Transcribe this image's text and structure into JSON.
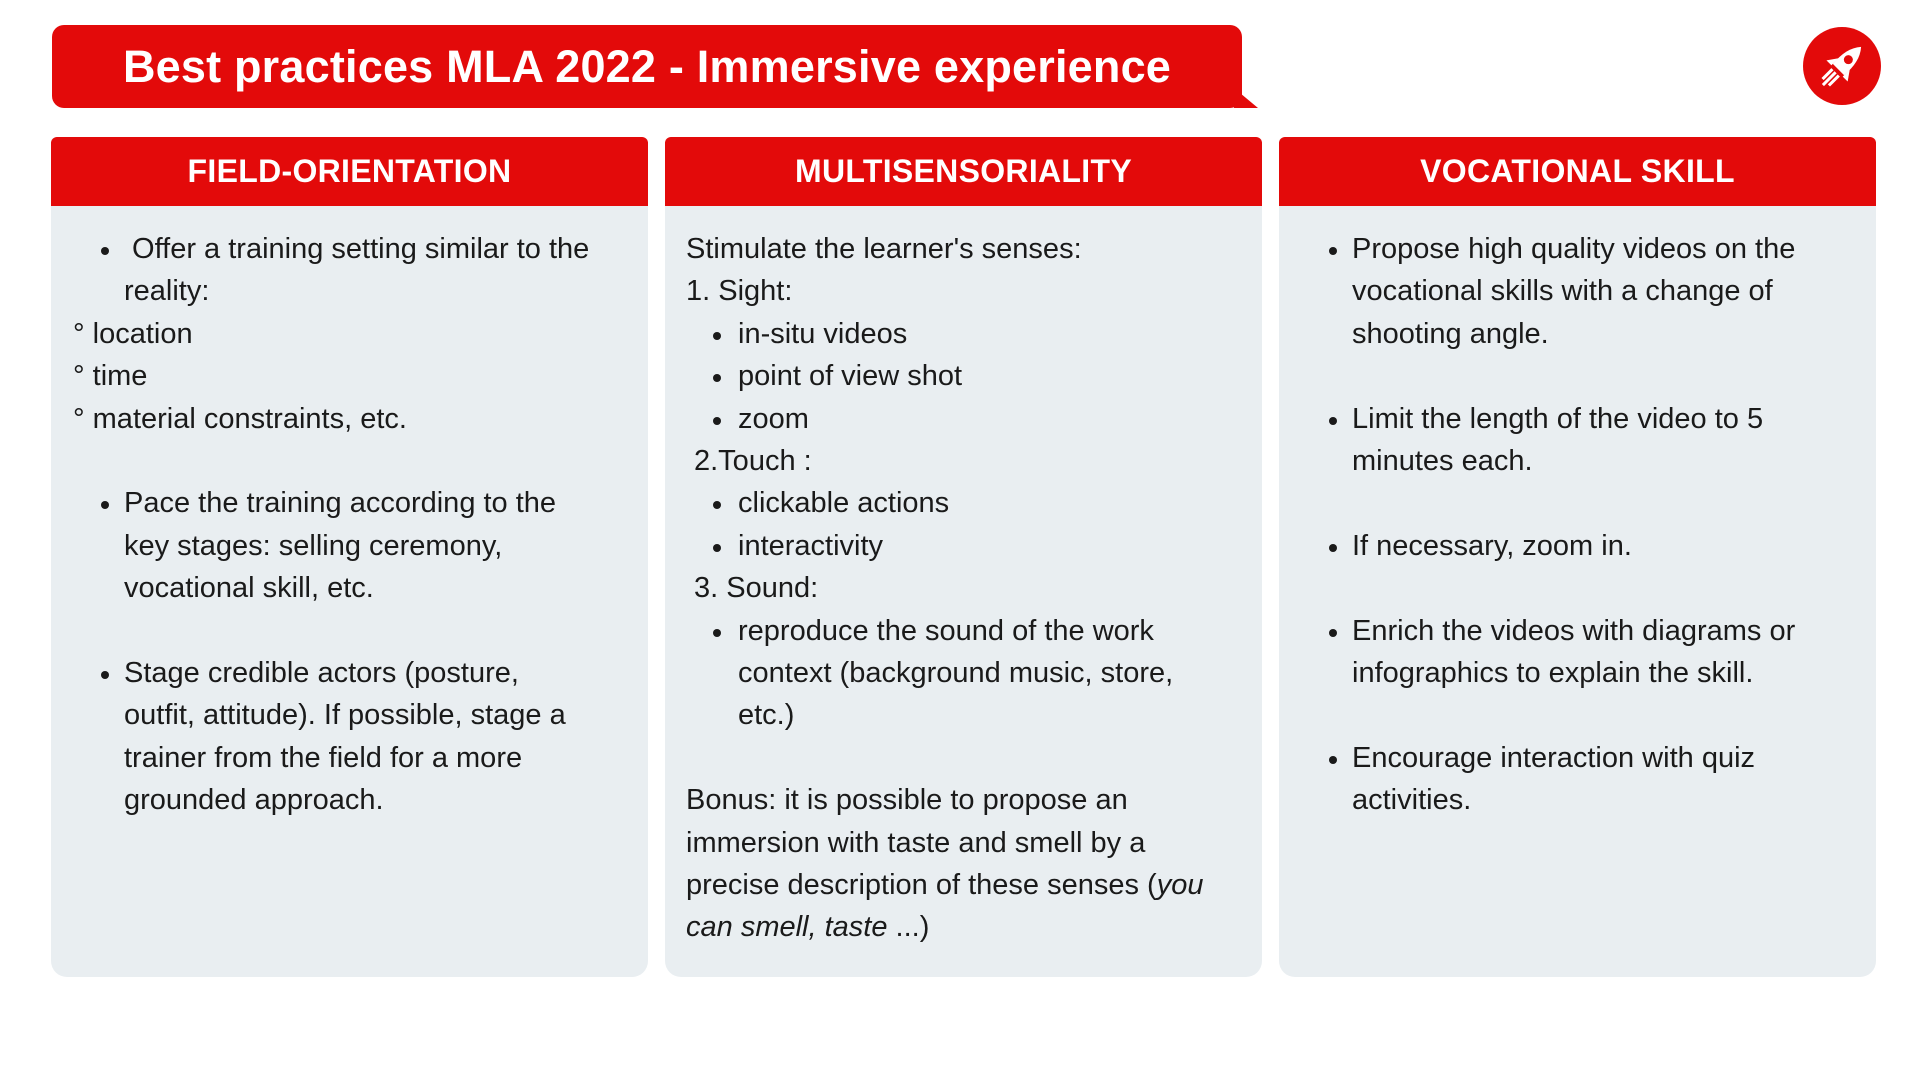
{
  "title": "Best practices MLA 2022 - Immersive experience",
  "brand_color": "#e30a0a",
  "logo_icon": "rocket-icon",
  "columns": {
    "field": {
      "heading": "FIELD-ORIENTATION",
      "b1_l1": " Offer a training setting similar to the",
      "b1_l2": "reality:",
      "sub1": "° location",
      "sub2": "° time",
      "sub3": "° material constraints, etc.",
      "b2_l1": "Pace the training according to the",
      "b2_l2": "key stages: selling ceremony,",
      "b2_l3": "vocational skill, etc.",
      "b3_l1": "Stage credible actors (posture,",
      "b3_l2": "outfit, attitude). If possible, stage a",
      "b3_l3": "trainer from the field for a more",
      "b3_l4": "grounded approach."
    },
    "multi": {
      "heading": "MULTISENSORIALITY",
      "intro": "Stimulate the learner's senses:",
      "sight": "1. Sight:",
      "sight_1": "in-situ videos",
      "sight_2": "point of view shot",
      "sight_3": "zoom",
      "touch": "2.Touch :",
      "touch_1": "clickable actions",
      "touch_2": "interactivity",
      "sound": "3. Sound:",
      "sound_l1": "reproduce the sound of the work",
      "sound_l2": "context (background music, store,",
      "sound_l3": "etc.)",
      "bonus_l1": "Bonus: it is possible to propose an",
      "bonus_l2": "immersion with taste and smell by a",
      "bonus_l3": "precise description of these senses (",
      "bonus_l3_italic": "you",
      "bonus_l4_italic": "can smell, taste",
      "bonus_l4_end": " ...)"
    },
    "vocational": {
      "heading": "VOCATIONAL SKILL",
      "b1_l1": "Propose high quality videos on the",
      "b1_l2": "vocational skills with a change of",
      "b1_l3": "shooting angle.",
      "b2_l1": "Limit the length of the video to 5",
      "b2_l2": "minutes each.",
      "b3_l1": "If necessary, zoom in.",
      "b4_l1": "Enrich the videos with diagrams or",
      "b4_l2": "infographics to explain the skill.",
      "b5_l1": "Encourage interaction with quiz",
      "b5_l2": "activities."
    }
  }
}
